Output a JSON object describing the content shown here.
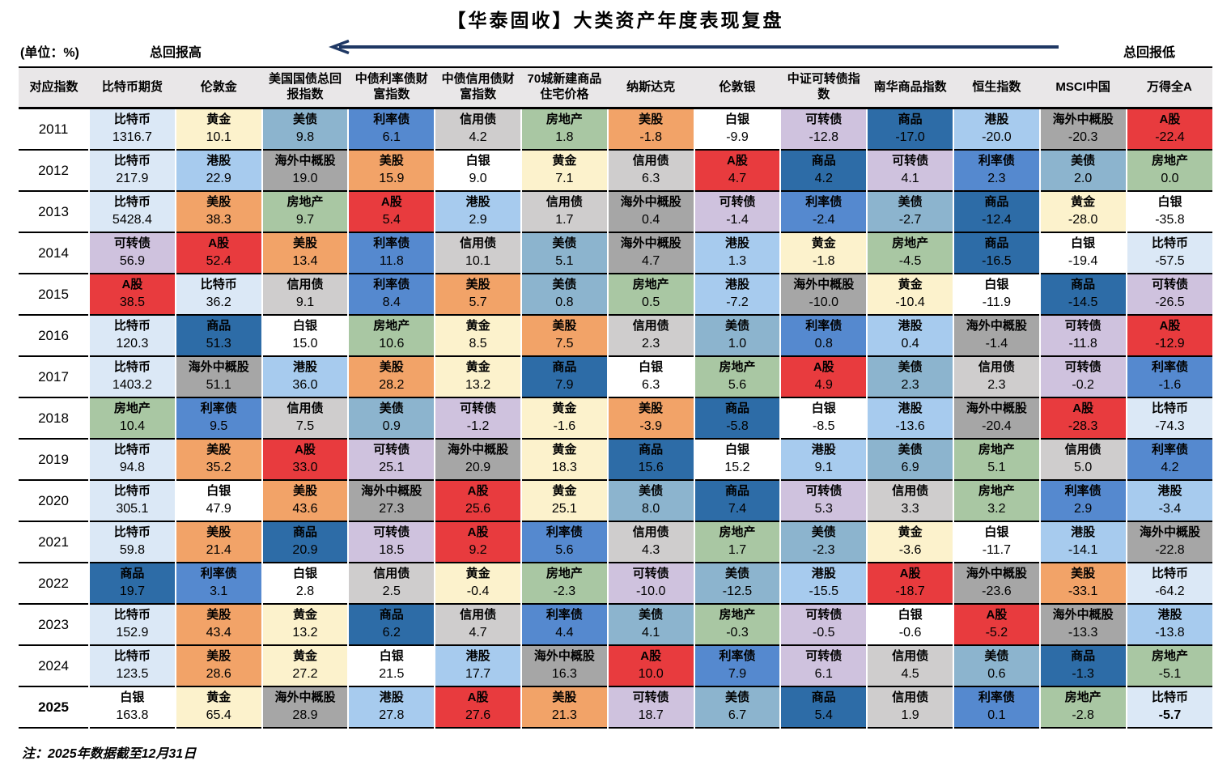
{
  "title": "【华泰固收】大类资产年度表现复盘",
  "unit_label": "(单位：%)",
  "legend": {
    "high": "总回报高",
    "low": "总回报低"
  },
  "note": "注：2025年数据截至12月31日",
  "arrow_color": "#1F3864",
  "header_bg": "#E9E7E8",
  "chart_data": {
    "type": "table",
    "title": "【华泰固收】大类资产年度表现复盘",
    "unit": "%",
    "sort_hint": "每行资产按年度总回报从高到低排列（总回报高 → 总回报低）",
    "columns": [
      "对应指数",
      "比特币期货",
      "伦敦金",
      "美国国债总回报指数",
      "中债利率债财富指数",
      "中债信用债财富指数",
      "70城新建商品住宅价格",
      "纳斯达克",
      "伦敦银",
      "中证可转债指数",
      "南华商品指数",
      "恒生指数",
      "MSCI中国",
      "万得全A"
    ],
    "assets": {
      "比特币": "#DBE8F6",
      "黄金": "#FCF2CC",
      "美债": "#8CB4CE",
      "利率债": "#5589CF",
      "信用债": "#CFCDCD",
      "房地产": "#A9C7A3",
      "美股": "#F2A368",
      "白银": "#FFFFFF",
      "可转债": "#CFC2DE",
      "商品": "#2D6CA7",
      "港股": "#A7CBEE",
      "海外中概股": "#A6A6A6",
      "A股": "#E83B3E"
    },
    "rows": [
      {
        "year": "2011",
        "cells": [
          [
            "比特币",
            "1316.7"
          ],
          [
            "黄金",
            "10.1"
          ],
          [
            "美债",
            "9.8"
          ],
          [
            "利率债",
            "6.1"
          ],
          [
            "信用债",
            "4.2"
          ],
          [
            "房地产",
            "1.8"
          ],
          [
            "美股",
            "-1.8"
          ],
          [
            "白银",
            "-9.9"
          ],
          [
            "可转债",
            "-12.8"
          ],
          [
            "商品",
            "-17.0"
          ],
          [
            "港股",
            "-20.0"
          ],
          [
            "海外中概股",
            "-20.3"
          ],
          [
            "A股",
            "-22.4"
          ]
        ]
      },
      {
        "year": "2012",
        "cells": [
          [
            "比特币",
            "217.9"
          ],
          [
            "港股",
            "22.9"
          ],
          [
            "海外中概股",
            "19.0"
          ],
          [
            "美股",
            "15.9"
          ],
          [
            "白银",
            "9.0"
          ],
          [
            "黄金",
            "7.1"
          ],
          [
            "信用债",
            "6.3"
          ],
          [
            "A股",
            "4.7"
          ],
          [
            "商品",
            "4.2"
          ],
          [
            "可转债",
            "4.1"
          ],
          [
            "利率债",
            "2.3"
          ],
          [
            "美债",
            "2.0"
          ],
          [
            "房地产",
            "0.0"
          ]
        ]
      },
      {
        "year": "2013",
        "cells": [
          [
            "比特币",
            "5428.4"
          ],
          [
            "美股",
            "38.3"
          ],
          [
            "房地产",
            "9.7"
          ],
          [
            "A股",
            "5.4"
          ],
          [
            "港股",
            "2.9"
          ],
          [
            "信用债",
            "1.7"
          ],
          [
            "海外中概股",
            "0.4"
          ],
          [
            "可转债",
            "-1.4"
          ],
          [
            "利率债",
            "-2.4"
          ],
          [
            "美债",
            "-2.7"
          ],
          [
            "商品",
            "-12.4"
          ],
          [
            "黄金",
            "-28.0"
          ],
          [
            "白银",
            "-35.8"
          ]
        ]
      },
      {
        "year": "2014",
        "cells": [
          [
            "可转债",
            "56.9"
          ],
          [
            "A股",
            "52.4"
          ],
          [
            "美股",
            "13.4"
          ],
          [
            "利率债",
            "11.8"
          ],
          [
            "信用债",
            "10.1"
          ],
          [
            "美债",
            "5.1"
          ],
          [
            "海外中概股",
            "4.7"
          ],
          [
            "港股",
            "1.3"
          ],
          [
            "黄金",
            "-1.8"
          ],
          [
            "房地产",
            "-4.5"
          ],
          [
            "商品",
            "-16.5"
          ],
          [
            "白银",
            "-19.4"
          ],
          [
            "比特币",
            "-57.5"
          ]
        ]
      },
      {
        "year": "2015",
        "cells": [
          [
            "A股",
            "38.5"
          ],
          [
            "比特币",
            "36.2"
          ],
          [
            "信用债",
            "9.1"
          ],
          [
            "利率债",
            "8.4"
          ],
          [
            "美股",
            "5.7"
          ],
          [
            "美债",
            "0.8"
          ],
          [
            "房地产",
            "0.5"
          ],
          [
            "港股",
            "-7.2"
          ],
          [
            "海外中概股",
            "-10.0"
          ],
          [
            "黄金",
            "-10.4"
          ],
          [
            "白银",
            "-11.9"
          ],
          [
            "商品",
            "-14.5"
          ],
          [
            "可转债",
            "-26.5"
          ]
        ]
      },
      {
        "year": "2016",
        "cells": [
          [
            "比特币",
            "120.3"
          ],
          [
            "商品",
            "51.3"
          ],
          [
            "白银",
            "15.0"
          ],
          [
            "房地产",
            "10.6"
          ],
          [
            "黄金",
            "8.5"
          ],
          [
            "美股",
            "7.5"
          ],
          [
            "信用债",
            "2.3"
          ],
          [
            "美债",
            "1.0"
          ],
          [
            "利率债",
            "0.8"
          ],
          [
            "港股",
            "0.4"
          ],
          [
            "海外中概股",
            "-1.4"
          ],
          [
            "可转债",
            "-11.8"
          ],
          [
            "A股",
            "-12.9"
          ]
        ]
      },
      {
        "year": "2017",
        "cells": [
          [
            "比特币",
            "1403.2"
          ],
          [
            "海外中概股",
            "51.1"
          ],
          [
            "港股",
            "36.0"
          ],
          [
            "美股",
            "28.2"
          ],
          [
            "黄金",
            "13.2"
          ],
          [
            "商品",
            "7.9"
          ],
          [
            "白银",
            "6.3"
          ],
          [
            "房地产",
            "5.6"
          ],
          [
            "A股",
            "4.9"
          ],
          [
            "美债",
            "2.3"
          ],
          [
            "信用债",
            "2.3"
          ],
          [
            "可转债",
            "-0.2"
          ],
          [
            "利率债",
            "-1.6"
          ]
        ]
      },
      {
        "year": "2018",
        "cells": [
          [
            "房地产",
            "10.4"
          ],
          [
            "利率债",
            "9.5"
          ],
          [
            "信用债",
            "7.5"
          ],
          [
            "美债",
            "0.9"
          ],
          [
            "可转债",
            "-1.2"
          ],
          [
            "黄金",
            "-1.6"
          ],
          [
            "美股",
            "-3.9"
          ],
          [
            "商品",
            "-5.8"
          ],
          [
            "白银",
            "-8.5"
          ],
          [
            "港股",
            "-13.6"
          ],
          [
            "海外中概股",
            "-20.4"
          ],
          [
            "A股",
            "-28.3"
          ],
          [
            "比特币",
            "-74.3"
          ]
        ]
      },
      {
        "year": "2019",
        "cells": [
          [
            "比特币",
            "94.8"
          ],
          [
            "美股",
            "35.2"
          ],
          [
            "A股",
            "33.0"
          ],
          [
            "可转债",
            "25.1"
          ],
          [
            "海外中概股",
            "20.9"
          ],
          [
            "黄金",
            "18.3"
          ],
          [
            "商品",
            "15.6"
          ],
          [
            "白银",
            "15.2"
          ],
          [
            "港股",
            "9.1"
          ],
          [
            "美债",
            "6.9"
          ],
          [
            "房地产",
            "5.1"
          ],
          [
            "信用债",
            "5.0"
          ],
          [
            "利率债",
            "4.2"
          ]
        ]
      },
      {
        "year": "2020",
        "cells": [
          [
            "比特币",
            "305.1"
          ],
          [
            "白银",
            "47.9"
          ],
          [
            "美股",
            "43.6"
          ],
          [
            "海外中概股",
            "27.3"
          ],
          [
            "A股",
            "25.6"
          ],
          [
            "黄金",
            "25.1"
          ],
          [
            "美债",
            "8.0"
          ],
          [
            "商品",
            "7.4"
          ],
          [
            "可转债",
            "5.3"
          ],
          [
            "信用债",
            "3.3"
          ],
          [
            "房地产",
            "3.2"
          ],
          [
            "利率债",
            "2.9"
          ],
          [
            "港股",
            "-3.4"
          ]
        ]
      },
      {
        "year": "2021",
        "cells": [
          [
            "比特币",
            "59.8"
          ],
          [
            "美股",
            "21.4"
          ],
          [
            "商品",
            "20.9"
          ],
          [
            "可转债",
            "18.5"
          ],
          [
            "A股",
            "9.2"
          ],
          [
            "利率债",
            "5.6"
          ],
          [
            "信用债",
            "4.3"
          ],
          [
            "房地产",
            "1.7"
          ],
          [
            "美债",
            "-2.3"
          ],
          [
            "黄金",
            "-3.6"
          ],
          [
            "白银",
            "-11.7"
          ],
          [
            "港股",
            "-14.1"
          ],
          [
            "海外中概股",
            "-22.8"
          ]
        ]
      },
      {
        "year": "2022",
        "cells": [
          [
            "商品",
            "19.7"
          ],
          [
            "利率债",
            "3.1"
          ],
          [
            "白银",
            "2.8"
          ],
          [
            "信用债",
            "2.5"
          ],
          [
            "黄金",
            "-0.4"
          ],
          [
            "房地产",
            "-2.3"
          ],
          [
            "可转债",
            "-10.0"
          ],
          [
            "美债",
            "-12.5"
          ],
          [
            "港股",
            "-15.5"
          ],
          [
            "A股",
            "-18.7"
          ],
          [
            "海外中概股",
            "-23.6"
          ],
          [
            "美股",
            "-33.1"
          ],
          [
            "比特币",
            "-64.2"
          ]
        ]
      },
      {
        "year": "2023",
        "cells": [
          [
            "比特币",
            "152.9"
          ],
          [
            "美股",
            "43.4"
          ],
          [
            "黄金",
            "13.2"
          ],
          [
            "商品",
            "6.2"
          ],
          [
            "信用债",
            "4.7"
          ],
          [
            "利率债",
            "4.4"
          ],
          [
            "美债",
            "4.1"
          ],
          [
            "房地产",
            "-0.3"
          ],
          [
            "可转债",
            "-0.5"
          ],
          [
            "白银",
            "-0.6"
          ],
          [
            "A股",
            "-5.2"
          ],
          [
            "海外中概股",
            "-13.3"
          ],
          [
            "港股",
            "-13.8"
          ]
        ]
      },
      {
        "year": "2024",
        "cells": [
          [
            "比特币",
            "123.5"
          ],
          [
            "美股",
            "28.6"
          ],
          [
            "黄金",
            "27.2"
          ],
          [
            "白银",
            "21.5"
          ],
          [
            "港股",
            "17.7"
          ],
          [
            "海外中概股",
            "16.3"
          ],
          [
            "A股",
            "10.0"
          ],
          [
            "利率债",
            "7.9"
          ],
          [
            "可转债",
            "6.1"
          ],
          [
            "信用债",
            "4.5"
          ],
          [
            "美债",
            "0.6"
          ],
          [
            "商品",
            "-1.3"
          ],
          [
            "房地产",
            "-5.1"
          ]
        ]
      },
      {
        "year": "2025",
        "year_bold": true,
        "cells": [
          [
            "白银",
            "163.8"
          ],
          [
            "黄金",
            "65.4"
          ],
          [
            "海外中概股",
            "28.9"
          ],
          [
            "港股",
            "27.8"
          ],
          [
            "A股",
            "27.6"
          ],
          [
            "美股",
            "21.3"
          ],
          [
            "可转债",
            "18.7"
          ],
          [
            "美债",
            "6.7"
          ],
          [
            "商品",
            "5.4"
          ],
          [
            "信用债",
            "1.9"
          ],
          [
            "利率债",
            "0.1"
          ],
          [
            "房地产",
            "-2.8"
          ],
          [
            "比特币",
            "-5.7",
            "b"
          ]
        ]
      }
    ]
  }
}
